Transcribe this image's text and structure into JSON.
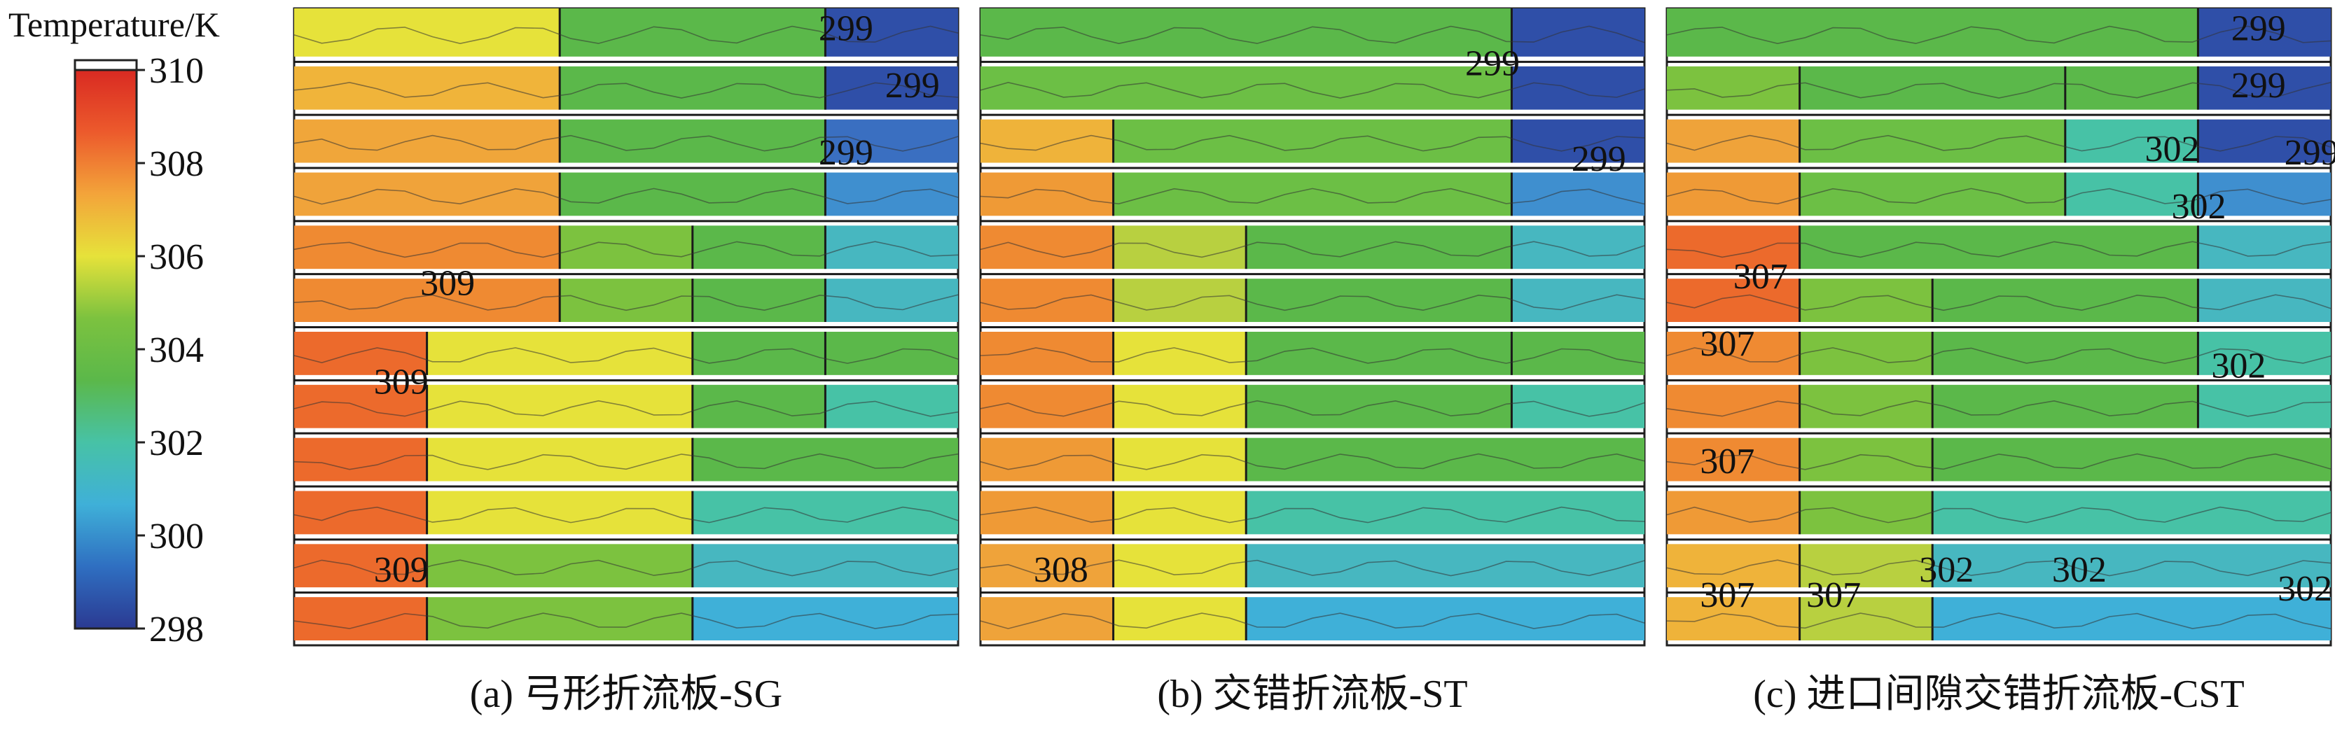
{
  "chart_data": {
    "type": "heatmap",
    "colorbar": {
      "title": "Temperature/K",
      "ticks": [
        "310",
        "308",
        "306",
        "304",
        "302",
        "300",
        "298"
      ],
      "range": [
        298,
        310
      ],
      "colors": [
        "#2b3a92",
        "#2f6fc1",
        "#3fb0d8",
        "#47c2a6",
        "#5bb84a",
        "#7cc23f",
        "#e6e23a",
        "#f3a43a",
        "#ec5a2c",
        "#d92a22"
      ]
    },
    "panels": [
      {
        "caption": "(a) 弓形折流板-SG",
        "passes": 12,
        "annotations": [
          {
            "text": "299",
            "px": 0.79,
            "py": 0.03
          },
          {
            "text": "299",
            "px": 0.89,
            "py": 0.12
          },
          {
            "text": "299",
            "px": 0.79,
            "py": 0.225
          },
          {
            "text": "309",
            "px": 0.19,
            "py": 0.43
          },
          {
            "text": "309",
            "px": 0.12,
            "py": 0.585
          },
          {
            "text": "309",
            "px": 0.12,
            "py": 0.88
          }
        ],
        "rows": [
          [
            {
              "w": 0.4,
              "c": "#e6e23a"
            },
            {
              "w": 0.4,
              "c": "#5bb84a"
            },
            {
              "w": 0.2,
              "c": "#2f4fa8"
            }
          ],
          [
            {
              "w": 0.4,
              "c": "#f0b43a"
            },
            {
              "w": 0.4,
              "c": "#5bb84a"
            },
            {
              "w": 0.2,
              "c": "#2f4fa8"
            }
          ],
          [
            {
              "w": 0.4,
              "c": "#f0a63a"
            },
            {
              "w": 0.4,
              "c": "#5bb84a"
            },
            {
              "w": 0.2,
              "c": "#3a6fc1"
            }
          ],
          [
            {
              "w": 0.4,
              "c": "#f0a33a"
            },
            {
              "w": 0.4,
              "c": "#5bb84a"
            },
            {
              "w": 0.2,
              "c": "#3f8fcf"
            }
          ],
          [
            {
              "w": 0.4,
              "c": "#ef8a32"
            },
            {
              "w": 0.2,
              "c": "#7cc23f"
            },
            {
              "w": 0.2,
              "c": "#5bb84a"
            },
            {
              "w": 0.2,
              "c": "#47b7c0"
            }
          ],
          [
            {
              "w": 0.4,
              "c": "#ef8a32"
            },
            {
              "w": 0.2,
              "c": "#7cc23f"
            },
            {
              "w": 0.2,
              "c": "#5bb84a"
            },
            {
              "w": 0.2,
              "c": "#47b7c0"
            }
          ],
          [
            {
              "w": 0.2,
              "c": "#ec6a2c"
            },
            {
              "w": 0.4,
              "c": "#e6e23a"
            },
            {
              "w": 0.2,
              "c": "#5bb84a"
            },
            {
              "w": 0.2,
              "c": "#5bb84a"
            }
          ],
          [
            {
              "w": 0.2,
              "c": "#ec6a2c"
            },
            {
              "w": 0.4,
              "c": "#e6e23a"
            },
            {
              "w": 0.2,
              "c": "#5bb84a"
            },
            {
              "w": 0.2,
              "c": "#47c2a6"
            }
          ],
          [
            {
              "w": 0.2,
              "c": "#ec6a2c"
            },
            {
              "w": 0.4,
              "c": "#e6e23a"
            },
            {
              "w": 0.4,
              "c": "#5bb84a"
            }
          ],
          [
            {
              "w": 0.2,
              "c": "#ec6a2c"
            },
            {
              "w": 0.4,
              "c": "#e6e23a"
            },
            {
              "w": 0.4,
              "c": "#47c2a6"
            }
          ],
          [
            {
              "w": 0.2,
              "c": "#ec6a2c"
            },
            {
              "w": 0.4,
              "c": "#7cc23f"
            },
            {
              "w": 0.4,
              "c": "#47b7c0"
            }
          ],
          [
            {
              "w": 0.2,
              "c": "#ec6a2c"
            },
            {
              "w": 0.4,
              "c": "#7cc23f"
            },
            {
              "w": 0.4,
              "c": "#3fb0d8"
            }
          ]
        ]
      },
      {
        "caption": "(b) 交错折流板-ST",
        "passes": 12,
        "annotations": [
          {
            "text": "299",
            "px": 0.73,
            "py": 0.085
          },
          {
            "text": "299",
            "px": 0.89,
            "py": 0.235
          },
          {
            "text": "308",
            "px": 0.08,
            "py": 0.88
          }
        ],
        "rows": [
          [
            {
              "w": 0.8,
              "c": "#5bb84a"
            },
            {
              "w": 0.2,
              "c": "#2f4fa8"
            }
          ],
          [
            {
              "w": 0.8,
              "c": "#6cbf45"
            },
            {
              "w": 0.2,
              "c": "#2f4fa8"
            }
          ],
          [
            {
              "w": 0.2,
              "c": "#efb33a"
            },
            {
              "w": 0.6,
              "c": "#6cbf45"
            },
            {
              "w": 0.2,
              "c": "#2f4fa8"
            }
          ],
          [
            {
              "w": 0.2,
              "c": "#ef9a36"
            },
            {
              "w": 0.6,
              "c": "#6cbf45"
            },
            {
              "w": 0.2,
              "c": "#3f8fcf"
            }
          ],
          [
            {
              "w": 0.2,
              "c": "#ef8a32"
            },
            {
              "w": 0.2,
              "c": "#b8d040"
            },
            {
              "w": 0.4,
              "c": "#5bb84a"
            },
            {
              "w": 0.2,
              "c": "#47b7c0"
            }
          ],
          [
            {
              "w": 0.2,
              "c": "#ef8a32"
            },
            {
              "w": 0.2,
              "c": "#b8d040"
            },
            {
              "w": 0.4,
              "c": "#5bb84a"
            },
            {
              "w": 0.2,
              "c": "#47b7c0"
            }
          ],
          [
            {
              "w": 0.2,
              "c": "#ef8a32"
            },
            {
              "w": 0.2,
              "c": "#e6e23a"
            },
            {
              "w": 0.4,
              "c": "#5bb84a"
            },
            {
              "w": 0.2,
              "c": "#5bb84a"
            }
          ],
          [
            {
              "w": 0.2,
              "c": "#ef8a32"
            },
            {
              "w": 0.2,
              "c": "#e6e23a"
            },
            {
              "w": 0.4,
              "c": "#5bb84a"
            },
            {
              "w": 0.2,
              "c": "#47c2a6"
            }
          ],
          [
            {
              "w": 0.2,
              "c": "#ef9a36"
            },
            {
              "w": 0.2,
              "c": "#e6e23a"
            },
            {
              "w": 0.6,
              "c": "#5bb84a"
            }
          ],
          [
            {
              "w": 0.2,
              "c": "#ef9a36"
            },
            {
              "w": 0.2,
              "c": "#e6e23a"
            },
            {
              "w": 0.6,
              "c": "#47c2a6"
            }
          ],
          [
            {
              "w": 0.2,
              "c": "#efa33a"
            },
            {
              "w": 0.2,
              "c": "#e6e23a"
            },
            {
              "w": 0.6,
              "c": "#47b7c0"
            }
          ],
          [
            {
              "w": 0.2,
              "c": "#efa33a"
            },
            {
              "w": 0.2,
              "c": "#e6e23a"
            },
            {
              "w": 0.6,
              "c": "#3fb0d8"
            }
          ]
        ]
      },
      {
        "caption": "(c) 进口间隙交错折流板-CST",
        "passes": 12,
        "annotations": [
          {
            "text": "299",
            "px": 0.85,
            "py": 0.03
          },
          {
            "text": "299",
            "px": 0.85,
            "py": 0.12
          },
          {
            "text": "302",
            "px": 0.72,
            "py": 0.22
          },
          {
            "text": "299",
            "px": 0.93,
            "py": 0.225
          },
          {
            "text": "302",
            "px": 0.76,
            "py": 0.31
          },
          {
            "text": "307",
            "px": 0.1,
            "py": 0.42
          },
          {
            "text": "307",
            "px": 0.05,
            "py": 0.525
          },
          {
            "text": "302",
            "px": 0.82,
            "py": 0.56
          },
          {
            "text": "307",
            "px": 0.05,
            "py": 0.71
          },
          {
            "text": "302",
            "px": 0.38,
            "py": 0.88
          },
          {
            "text": "302",
            "px": 0.58,
            "py": 0.88
          },
          {
            "text": "307",
            "px": 0.05,
            "py": 0.92
          },
          {
            "text": "307",
            "px": 0.21,
            "py": 0.92
          },
          {
            "text": "302",
            "px": 0.92,
            "py": 0.91
          }
        ],
        "rows": [
          [
            {
              "w": 0.8,
              "c": "#5bb84a"
            },
            {
              "w": 0.2,
              "c": "#2f4fa8"
            }
          ],
          [
            {
              "w": 0.2,
              "c": "#7cc23f"
            },
            {
              "w": 0.4,
              "c": "#5bb84a"
            },
            {
              "w": 0.2,
              "c": "#5bb84a"
            },
            {
              "w": 0.2,
              "c": "#2f4fa8"
            }
          ],
          [
            {
              "w": 0.2,
              "c": "#efa33a"
            },
            {
              "w": 0.4,
              "c": "#6cbf45"
            },
            {
              "w": 0.2,
              "c": "#47c2a6"
            },
            {
              "w": 0.2,
              "c": "#2f4fa8"
            }
          ],
          [
            {
              "w": 0.2,
              "c": "#ef9a36"
            },
            {
              "w": 0.4,
              "c": "#6cbf45"
            },
            {
              "w": 0.2,
              "c": "#47c2a6"
            },
            {
              "w": 0.2,
              "c": "#3f8fcf"
            }
          ],
          [
            {
              "w": 0.2,
              "c": "#ec6a2c"
            },
            {
              "w": 0.6,
              "c": "#5bb84a"
            },
            {
              "w": 0.2,
              "c": "#47b7c0"
            }
          ],
          [
            {
              "w": 0.2,
              "c": "#ec6a2c"
            },
            {
              "w": 0.2,
              "c": "#7cc23f"
            },
            {
              "w": 0.4,
              "c": "#5bb84a"
            },
            {
              "w": 0.2,
              "c": "#47b7c0"
            }
          ],
          [
            {
              "w": 0.2,
              "c": "#ef8a32"
            },
            {
              "w": 0.2,
              "c": "#7cc23f"
            },
            {
              "w": 0.4,
              "c": "#5bb84a"
            },
            {
              "w": 0.2,
              "c": "#47c2a6"
            }
          ],
          [
            {
              "w": 0.2,
              "c": "#ef8a32"
            },
            {
              "w": 0.2,
              "c": "#7cc23f"
            },
            {
              "w": 0.4,
              "c": "#5bb84a"
            },
            {
              "w": 0.2,
              "c": "#47c2a6"
            }
          ],
          [
            {
              "w": 0.2,
              "c": "#ef8a32"
            },
            {
              "w": 0.2,
              "c": "#7cc23f"
            },
            {
              "w": 0.6,
              "c": "#5bb84a"
            }
          ],
          [
            {
              "w": 0.2,
              "c": "#ef9a36"
            },
            {
              "w": 0.2,
              "c": "#7cc23f"
            },
            {
              "w": 0.6,
              "c": "#47c2a6"
            }
          ],
          [
            {
              "w": 0.2,
              "c": "#efb33a"
            },
            {
              "w": 0.2,
              "c": "#b8d040"
            },
            {
              "w": 0.6,
              "c": "#47b7c0"
            }
          ],
          [
            {
              "w": 0.2,
              "c": "#efb33a"
            },
            {
              "w": 0.2,
              "c": "#b8d040"
            },
            {
              "w": 0.6,
              "c": "#3fb0d8"
            }
          ]
        ]
      }
    ]
  }
}
